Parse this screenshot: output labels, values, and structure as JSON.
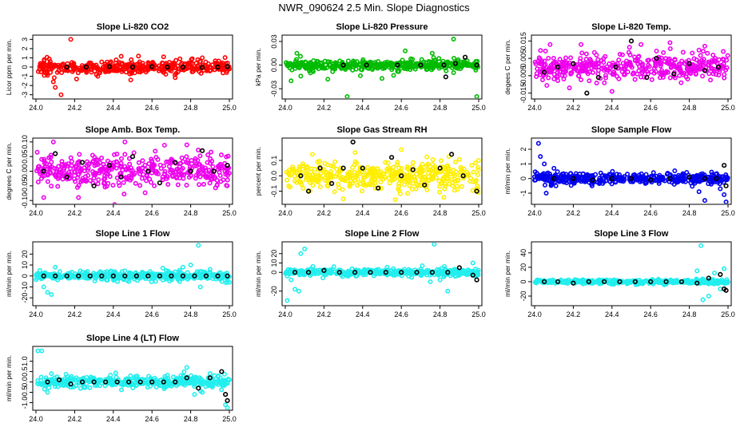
{
  "page_title": "NWR_090624  2.5 Min. Slope Diagnostics",
  "chart_data": [
    {
      "type": "scatter",
      "title": "Slope Li-820 CO2",
      "ylabel": "Licor ppm per min.",
      "xlim": [
        24.0,
        25.0
      ],
      "ylim": [
        -3.2,
        3.2
      ],
      "xticks": [
        "24.0",
        "24.2",
        "24.4",
        "24.6",
        "24.8",
        "25.0"
      ],
      "yticks": [
        -3,
        -2,
        -1,
        0,
        1,
        2,
        3
      ],
      "ytick_labels": [
        "-3",
        "-2",
        "-1",
        "0",
        "1",
        "2",
        "3"
      ],
      "color": "#ff0000",
      "spread": 0.45,
      "seed": 11,
      "outliers": [
        [
          24.06,
          -0.9
        ],
        [
          24.09,
          -1.6
        ],
        [
          24.1,
          -2.2
        ],
        [
          24.13,
          -3.0
        ],
        [
          24.18,
          3.0
        ],
        [
          24.21,
          -1.3
        ],
        [
          24.32,
          -1.0
        ],
        [
          24.49,
          -1.4
        ],
        [
          24.66,
          1.1
        ],
        [
          24.86,
          1.0
        ]
      ],
      "black": [
        [
          24.16,
          0.0
        ],
        [
          24.26,
          0.0
        ],
        [
          24.38,
          0.05
        ],
        [
          24.5,
          0.0
        ],
        [
          24.6,
          0.05
        ],
        [
          24.68,
          0.0
        ],
        [
          24.76,
          0.0
        ],
        [
          24.86,
          -0.05
        ],
        [
          24.94,
          0.0
        ],
        [
          24.99,
          0.05
        ]
      ]
    },
    {
      "type": "scatter",
      "title": "Slope Li-820 Pressure",
      "ylabel": "kPa per min.",
      "xlim": [
        24.0,
        25.0
      ],
      "ylim": [
        -0.04,
        0.035
      ],
      "xticks": [
        "24.0",
        "24.2",
        "24.4",
        "24.6",
        "24.8",
        "25.0"
      ],
      "yticks": [
        -0.03,
        0.0,
        0.03
      ],
      "ytick_labels": [
        "-0.03",
        "0.00",
        "0.03"
      ],
      "color": "#00bb00",
      "spread": 0.004,
      "seed": 23,
      "outliers": [
        [
          24.03,
          -0.02
        ],
        [
          24.06,
          0.015
        ],
        [
          24.08,
          -0.014
        ],
        [
          24.13,
          -0.01
        ],
        [
          24.22,
          -0.018
        ],
        [
          24.32,
          -0.04
        ],
        [
          24.5,
          -0.017
        ],
        [
          24.56,
          -0.013
        ],
        [
          24.62,
          0.018
        ],
        [
          24.76,
          0.015
        ],
        [
          24.87,
          0.033
        ],
        [
          24.99,
          -0.04
        ]
      ],
      "black": [
        [
          24.3,
          0.0
        ],
        [
          24.42,
          0.0
        ],
        [
          24.58,
          0.0
        ],
        [
          24.7,
          0.0
        ],
        [
          24.82,
          0.0
        ],
        [
          24.83,
          -0.015
        ],
        [
          24.88,
          0.002
        ],
        [
          24.93,
          0.01
        ],
        [
          24.99,
          0.0
        ]
      ]
    },
    {
      "type": "scatter",
      "title": "Slope Li-820 Temp.",
      "ylabel": "degees C per min.",
      "xlim": [
        24.0,
        25.0
      ],
      "ylim": [
        -0.017,
        0.017
      ],
      "xticks": [
        "24.0",
        "24.2",
        "24.4",
        "24.6",
        "24.8",
        "25.0"
      ],
      "yticks": [
        -0.015,
        -0.005,
        0.005,
        0.015
      ],
      "ytick_labels": [
        "-0.015",
        "-0.005",
        "0.005",
        "0.015"
      ],
      "color": "#ee00ee",
      "spread": 0.005,
      "seed": 37,
      "outliers": [
        [
          24.08,
          0.013
        ],
        [
          24.18,
          -0.012
        ],
        [
          24.24,
          0.013
        ],
        [
          24.4,
          -0.014
        ],
        [
          24.55,
          0.013
        ],
        [
          24.7,
          0.014
        ],
        [
          24.88,
          0.012
        ]
      ],
      "black": [
        [
          24.05,
          -0.003
        ],
        [
          24.12,
          0.0
        ],
        [
          24.2,
          0.002
        ],
        [
          24.27,
          -0.015
        ],
        [
          24.33,
          -0.006
        ],
        [
          24.42,
          0.0
        ],
        [
          24.5,
          0.015
        ],
        [
          24.58,
          -0.006
        ],
        [
          24.63,
          0.005
        ],
        [
          24.72,
          -0.004
        ],
        [
          24.8,
          0.002
        ],
        [
          24.88,
          -0.002
        ],
        [
          24.95,
          0.0
        ]
      ]
    },
    {
      "type": "scatter",
      "title": "Slope Amb. Box Temp.",
      "ylabel": "degrees C per min.",
      "xlim": [
        24.0,
        25.0
      ],
      "ylim": [
        -0.105,
        0.105
      ],
      "xticks": [
        "24.0",
        "24.2",
        "24.4",
        "24.6",
        "24.8",
        "25.0"
      ],
      "yticks": [
        -0.1,
        -0.05,
        0.0,
        0.05,
        0.1
      ],
      "ytick_labels": [
        "-0.10",
        "-0.05",
        "0.00",
        "0.05",
        "0.10"
      ],
      "color": "#ee00ee",
      "spread": 0.035,
      "seed": 41,
      "outliers": [
        [
          24.04,
          -0.09
        ],
        [
          24.09,
          0.1
        ],
        [
          24.22,
          -0.09
        ],
        [
          24.46,
          0.1
        ],
        [
          24.78,
          0.09
        ]
      ],
      "black": [
        [
          24.04,
          0.0
        ],
        [
          24.1,
          0.06
        ],
        [
          24.16,
          -0.02
        ],
        [
          24.24,
          0.03
        ],
        [
          24.3,
          -0.05
        ],
        [
          24.38,
          0.02
        ],
        [
          24.44,
          -0.02
        ],
        [
          24.5,
          0.05
        ],
        [
          24.58,
          0.0
        ],
        [
          24.64,
          -0.04
        ],
        [
          24.72,
          0.03
        ],
        [
          24.8,
          0.0
        ],
        [
          24.86,
          0.07
        ],
        [
          24.92,
          0.0
        ],
        [
          24.99,
          0.02
        ]
      ]
    },
    {
      "type": "scatter",
      "title": "Slope Gas Stream RH",
      "ylabel": "percent per min.",
      "xlim": [
        24.0,
        25.0
      ],
      "ylim": [
        -0.17,
        0.23
      ],
      "xticks": [
        "24.0",
        "24.2",
        "24.4",
        "24.6",
        "24.8",
        "25.0"
      ],
      "yticks": [
        -0.1,
        0.0,
        0.1
      ],
      "ytick_labels": [
        "-0.1",
        "0.0",
        "0.1"
      ],
      "color": "#ffee00",
      "spread": 0.065,
      "seed": 53,
      "outliers": [
        [
          24.14,
          0.14
        ],
        [
          24.3,
          -0.15
        ],
        [
          24.6,
          0.17
        ],
        [
          24.82,
          -0.14
        ]
      ],
      "black": [
        [
          24.08,
          0.0
        ],
        [
          24.12,
          -0.1
        ],
        [
          24.18,
          0.05
        ],
        [
          24.24,
          -0.05
        ],
        [
          24.3,
          0.05
        ],
        [
          24.35,
          0.22
        ],
        [
          24.4,
          0.05
        ],
        [
          24.48,
          -0.08
        ],
        [
          24.55,
          0.12
        ],
        [
          24.6,
          0.0
        ],
        [
          24.66,
          0.04
        ],
        [
          24.72,
          -0.06
        ],
        [
          24.8,
          0.05
        ],
        [
          24.86,
          0.14
        ],
        [
          24.92,
          0.0
        ],
        [
          24.99,
          -0.1
        ]
      ]
    },
    {
      "type": "scatter",
      "title": "Slope Sample Flow",
      "ylabel": "ml/min per min.",
      "xlim": [
        24.0,
        25.0
      ],
      "ylim": [
        -1.6,
        2.6
      ],
      "xticks": [
        "24.0",
        "24.2",
        "24.4",
        "24.6",
        "24.8",
        "25.0"
      ],
      "yticks": [
        -1,
        0,
        1,
        2
      ],
      "ytick_labels": [
        "-1",
        "0",
        "1",
        "2"
      ],
      "color": "#0000ee",
      "spread": 0.22,
      "seed": 67,
      "outliers": [
        [
          24.02,
          2.4
        ],
        [
          24.03,
          1.5
        ],
        [
          24.05,
          1.0
        ],
        [
          24.06,
          -1.0
        ],
        [
          24.1,
          0.7
        ],
        [
          24.85,
          -0.9
        ],
        [
          24.88,
          -1.5
        ],
        [
          24.96,
          -0.7
        ],
        [
          24.98,
          -1.1
        ],
        [
          24.99,
          -1.6
        ]
      ],
      "black": [
        [
          24.1,
          0.0
        ],
        [
          24.2,
          0.0
        ],
        [
          24.3,
          -0.1
        ],
        [
          24.4,
          0.0
        ],
        [
          24.5,
          0.0
        ],
        [
          24.6,
          -0.1
        ],
        [
          24.7,
          0.0
        ],
        [
          24.8,
          0.1
        ],
        [
          24.88,
          0.0
        ],
        [
          24.94,
          0.0
        ],
        [
          24.98,
          0.9
        ],
        [
          24.99,
          -0.5
        ]
      ]
    },
    {
      "type": "scatter",
      "title": "Slope Line 1 Flow",
      "ylabel": "ml/min per min.",
      "xlim": [
        24.0,
        25.0
      ],
      "ylim": [
        -25,
        29
      ],
      "xticks": [
        "24.0",
        "24.2",
        "24.4",
        "24.6",
        "24.8",
        "25.0"
      ],
      "yticks": [
        -20,
        -10,
        0,
        10,
        20
      ],
      "ytick_labels": [
        "-20",
        "-10",
        "0",
        "10",
        "20"
      ],
      "color": "#22eeee",
      "spread": 2.5,
      "seed": 71,
      "outliers": [
        [
          24.02,
          5
        ],
        [
          24.04,
          -10
        ],
        [
          24.06,
          -15
        ],
        [
          24.08,
          -17
        ],
        [
          24.1,
          8
        ],
        [
          24.76,
          8
        ],
        [
          24.8,
          10
        ],
        [
          24.84,
          28
        ],
        [
          24.85,
          -10
        ],
        [
          24.9,
          6
        ],
        [
          24.99,
          -5
        ]
      ],
      "black": [
        [
          24.04,
          0
        ],
        [
          24.1,
          0
        ],
        [
          24.16,
          0
        ],
        [
          24.22,
          0
        ],
        [
          24.28,
          0
        ],
        [
          24.34,
          0
        ],
        [
          24.4,
          0
        ],
        [
          24.46,
          0
        ],
        [
          24.52,
          0
        ],
        [
          24.58,
          0
        ],
        [
          24.64,
          0
        ],
        [
          24.7,
          0
        ],
        [
          24.76,
          0
        ],
        [
          24.82,
          0
        ],
        [
          24.88,
          0
        ],
        [
          24.94,
          0
        ],
        [
          24.99,
          0
        ]
      ]
    },
    {
      "type": "scatter",
      "title": "Slope Line 2 Flow",
      "ylabel": "ml/min per min.",
      "xlim": [
        24.0,
        25.0
      ],
      "ylim": [
        -33,
        30
      ],
      "xticks": [
        "24.0",
        "24.2",
        "24.4",
        "24.6",
        "24.8",
        "25.0"
      ],
      "yticks": [
        -20,
        0,
        10,
        20
      ],
      "ytick_labels": [
        "-20",
        "0",
        "10",
        "20"
      ],
      "color": "#22eeee",
      "spread": 2.5,
      "seed": 83,
      "outliers": [
        [
          24.01,
          -30
        ],
        [
          24.03,
          -8
        ],
        [
          24.05,
          -18
        ],
        [
          24.07,
          -20
        ],
        [
          24.08,
          20
        ],
        [
          24.1,
          25
        ],
        [
          24.75,
          -10
        ],
        [
          24.77,
          30
        ],
        [
          24.8,
          -8
        ],
        [
          24.84,
          -20
        ],
        [
          24.97,
          10
        ]
      ],
      "black": [
        [
          24.05,
          0
        ],
        [
          24.12,
          0
        ],
        [
          24.2,
          2
        ],
        [
          24.28,
          0
        ],
        [
          24.36,
          0
        ],
        [
          24.44,
          0
        ],
        [
          24.52,
          0
        ],
        [
          24.6,
          0
        ],
        [
          24.68,
          0
        ],
        [
          24.76,
          0
        ],
        [
          24.84,
          0
        ],
        [
          24.9,
          5
        ],
        [
          24.97,
          -3
        ],
        [
          24.99,
          -8
        ]
      ]
    },
    {
      "type": "scatter",
      "title": "Slope Line 3 Flow",
      "ylabel": "ml/min per min.",
      "xlim": [
        24.0,
        25.0
      ],
      "ylim": [
        -30,
        52
      ],
      "xticks": [
        "24.0",
        "24.2",
        "24.4",
        "24.6",
        "24.8",
        "25.0"
      ],
      "yticks": [
        -20,
        0,
        20,
        40
      ],
      "ytick_labels": [
        "-20",
        "0",
        "20",
        "40"
      ],
      "color": "#22eeee",
      "spread": 2.0,
      "seed": 97,
      "outliers": [
        [
          24.84,
          15
        ],
        [
          24.86,
          50
        ],
        [
          24.87,
          -25
        ],
        [
          24.9,
          -20
        ],
        [
          24.93,
          12
        ],
        [
          24.96,
          -10
        ],
        [
          24.98,
          18
        ]
      ],
      "black": [
        [
          24.05,
          0
        ],
        [
          24.12,
          0
        ],
        [
          24.2,
          -2
        ],
        [
          24.28,
          0
        ],
        [
          24.36,
          0
        ],
        [
          24.44,
          0
        ],
        [
          24.52,
          0
        ],
        [
          24.6,
          0
        ],
        [
          24.68,
          0
        ],
        [
          24.76,
          0
        ],
        [
          24.84,
          -2
        ],
        [
          24.9,
          5
        ],
        [
          24.96,
          10
        ],
        [
          24.98,
          -10
        ],
        [
          24.99,
          -12
        ]
      ]
    },
    {
      "type": "scatter",
      "title": "Slope Line 4 (LT) Flow",
      "ylabel": "ml/min per min.",
      "xlim": [
        24.0,
        25.0
      ],
      "ylim": [
        -1.25,
        1.6
      ],
      "xticks": [
        "24.0",
        "24.2",
        "24.4",
        "24.6",
        "24.8",
        "25.0"
      ],
      "yticks": [
        -1.0,
        -0.5,
        0.0,
        0.5,
        1.0
      ],
      "ytick_labels": [
        "-1.0",
        "-0.5",
        "0.0",
        "0.5",
        "1.0"
      ],
      "color": "#22eeee",
      "spread": 0.18,
      "seed": 109,
      "outliers": [
        [
          24.01,
          1.5
        ],
        [
          24.03,
          1.5
        ],
        [
          24.06,
          -0.5
        ],
        [
          24.08,
          0.4
        ],
        [
          24.78,
          0.7
        ],
        [
          24.82,
          -0.6
        ],
        [
          24.86,
          -0.5
        ],
        [
          24.9,
          0.4
        ],
        [
          24.98,
          -1.1
        ],
        [
          24.99,
          -1.25
        ]
      ],
      "black": [
        [
          24.06,
          0.0
        ],
        [
          24.12,
          0.1
        ],
        [
          24.18,
          -0.1
        ],
        [
          24.24,
          0.0
        ],
        [
          24.3,
          0.0
        ],
        [
          24.36,
          0.0
        ],
        [
          24.42,
          0.0
        ],
        [
          24.48,
          0.0
        ],
        [
          24.54,
          0.0
        ],
        [
          24.6,
          0.0
        ],
        [
          24.66,
          0.0
        ],
        [
          24.72,
          0.0
        ],
        [
          24.78,
          0.2
        ],
        [
          24.84,
          -0.3
        ],
        [
          24.9,
          0.2
        ],
        [
          24.96,
          0.5
        ],
        [
          24.98,
          -0.6
        ],
        [
          24.99,
          -0.9
        ]
      ]
    }
  ]
}
